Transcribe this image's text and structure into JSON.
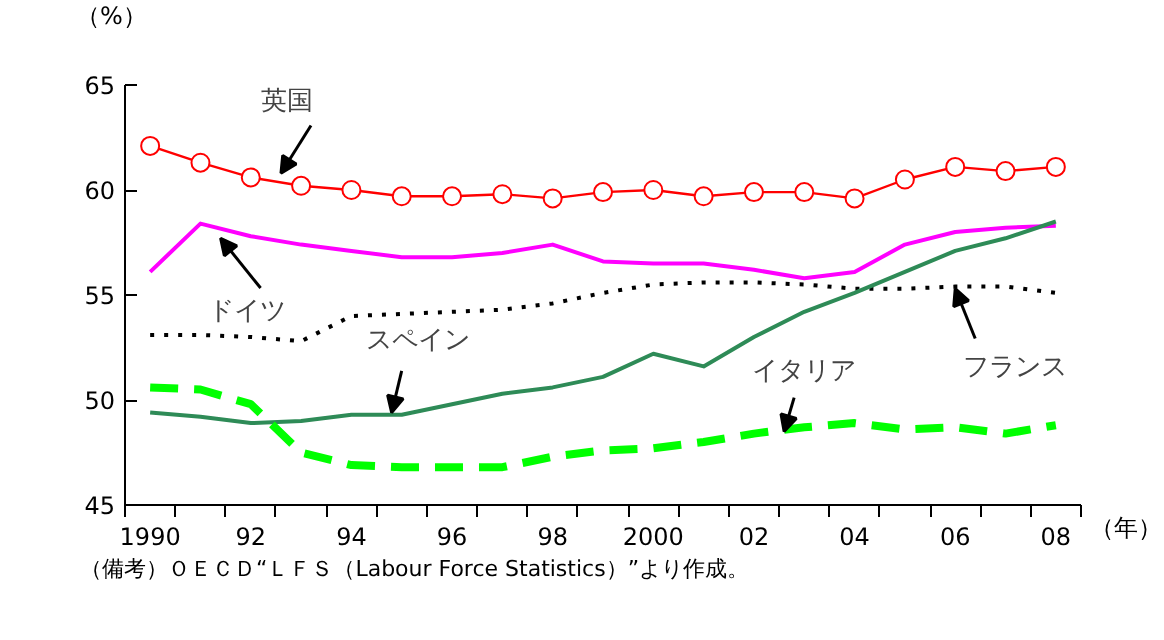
{
  "chart_data": {
    "type": "line",
    "ylabel": "（%）",
    "xlabel": "（年）",
    "x": [
      1990,
      1991,
      1992,
      1993,
      1994,
      1995,
      1996,
      1997,
      1998,
      1999,
      2000,
      2001,
      2002,
      2003,
      2004,
      2005,
      2006,
      2007,
      2008
    ],
    "series": [
      {
        "color": "#ff0000",
        "marker": "circle",
        "line_style": "solid",
        "values": [
          62.1,
          61.3,
          60.6,
          60.2,
          60.0,
          59.7,
          59.7,
          59.8,
          59.6,
          59.9,
          60.0,
          59.7,
          59.9,
          59.9,
          59.6,
          60.5,
          61.1,
          60.9,
          61.1
        ]
      },
      {
        "color": "#ff00ff",
        "marker": "none",
        "line_style": "solid",
        "values": [
          56.1,
          58.4,
          57.8,
          57.4,
          57.1,
          56.8,
          56.8,
          57.0,
          57.4,
          56.6,
          56.5,
          56.5,
          56.2,
          55.8,
          56.1,
          57.4,
          58.0,
          58.2,
          58.3
        ]
      },
      {
        "color": "#000000",
        "marker": "none",
        "line_style": "dotted",
        "values": [
          53.1,
          53.1,
          53.0,
          52.8,
          54.0,
          54.1,
          54.2,
          54.3,
          54.6,
          55.1,
          55.5,
          55.6,
          55.6,
          55.5,
          55.3,
          55.3,
          55.4,
          55.4,
          55.1
        ]
      },
      {
        "color": "#2e8b57",
        "marker": "none",
        "line_style": "solid",
        "values": [
          49.4,
          49.2,
          48.9,
          49.0,
          49.3,
          49.3,
          49.8,
          50.3,
          50.6,
          51.1,
          52.2,
          51.6,
          53.0,
          54.2,
          55.1,
          56.1,
          57.1,
          57.7,
          58.5
        ]
      },
      {
        "color": "#00ff00",
        "marker": "none",
        "line_style": "dashed",
        "values": [
          50.6,
          50.5,
          49.8,
          47.5,
          46.9,
          46.8,
          46.8,
          46.8,
          47.3,
          47.6,
          47.7,
          48.0,
          48.4,
          48.7,
          48.9,
          48.6,
          48.7,
          48.4,
          48.8
        ]
      }
    ],
    "annotations": [
      {
        "text": "英国",
        "x": 1992.6,
        "y": 60.8
      },
      {
        "text": "ドイツ",
        "x": 1991.4,
        "y": 57.7
      },
      {
        "text": "スペイン",
        "x": 1994.8,
        "y": 49.4
      },
      {
        "text": "イタリア",
        "x": 2002.6,
        "y": 48.5
      },
      {
        "text": "フランス",
        "x": 2006.0,
        "y": 55.3
      },
      "（備考）ＯＥＣＤ“ＬＦＳ（Labour Force Statistics）”より作成。"
    ],
    "xlim": [
      1989.5,
      2008.5
    ],
    "ylim": [
      45,
      65
    ],
    "xticks": [
      {
        "value": 1990,
        "label": "1990"
      },
      {
        "value": 1992,
        "label": "92"
      },
      {
        "value": 1994,
        "label": "94"
      },
      {
        "value": 1996,
        "label": "96"
      },
      {
        "value": 1998,
        "label": "98"
      },
      {
        "value": 2000,
        "label": "2000"
      },
      {
        "value": 2002,
        "label": "02"
      },
      {
        "value": 2004,
        "label": "04"
      },
      {
        "value": 2006,
        "label": "06"
      },
      {
        "value": 2008,
        "label": "08"
      }
    ],
    "yticks": [
      45,
      50,
      55,
      60,
      65
    ],
    "grid": false
  }
}
